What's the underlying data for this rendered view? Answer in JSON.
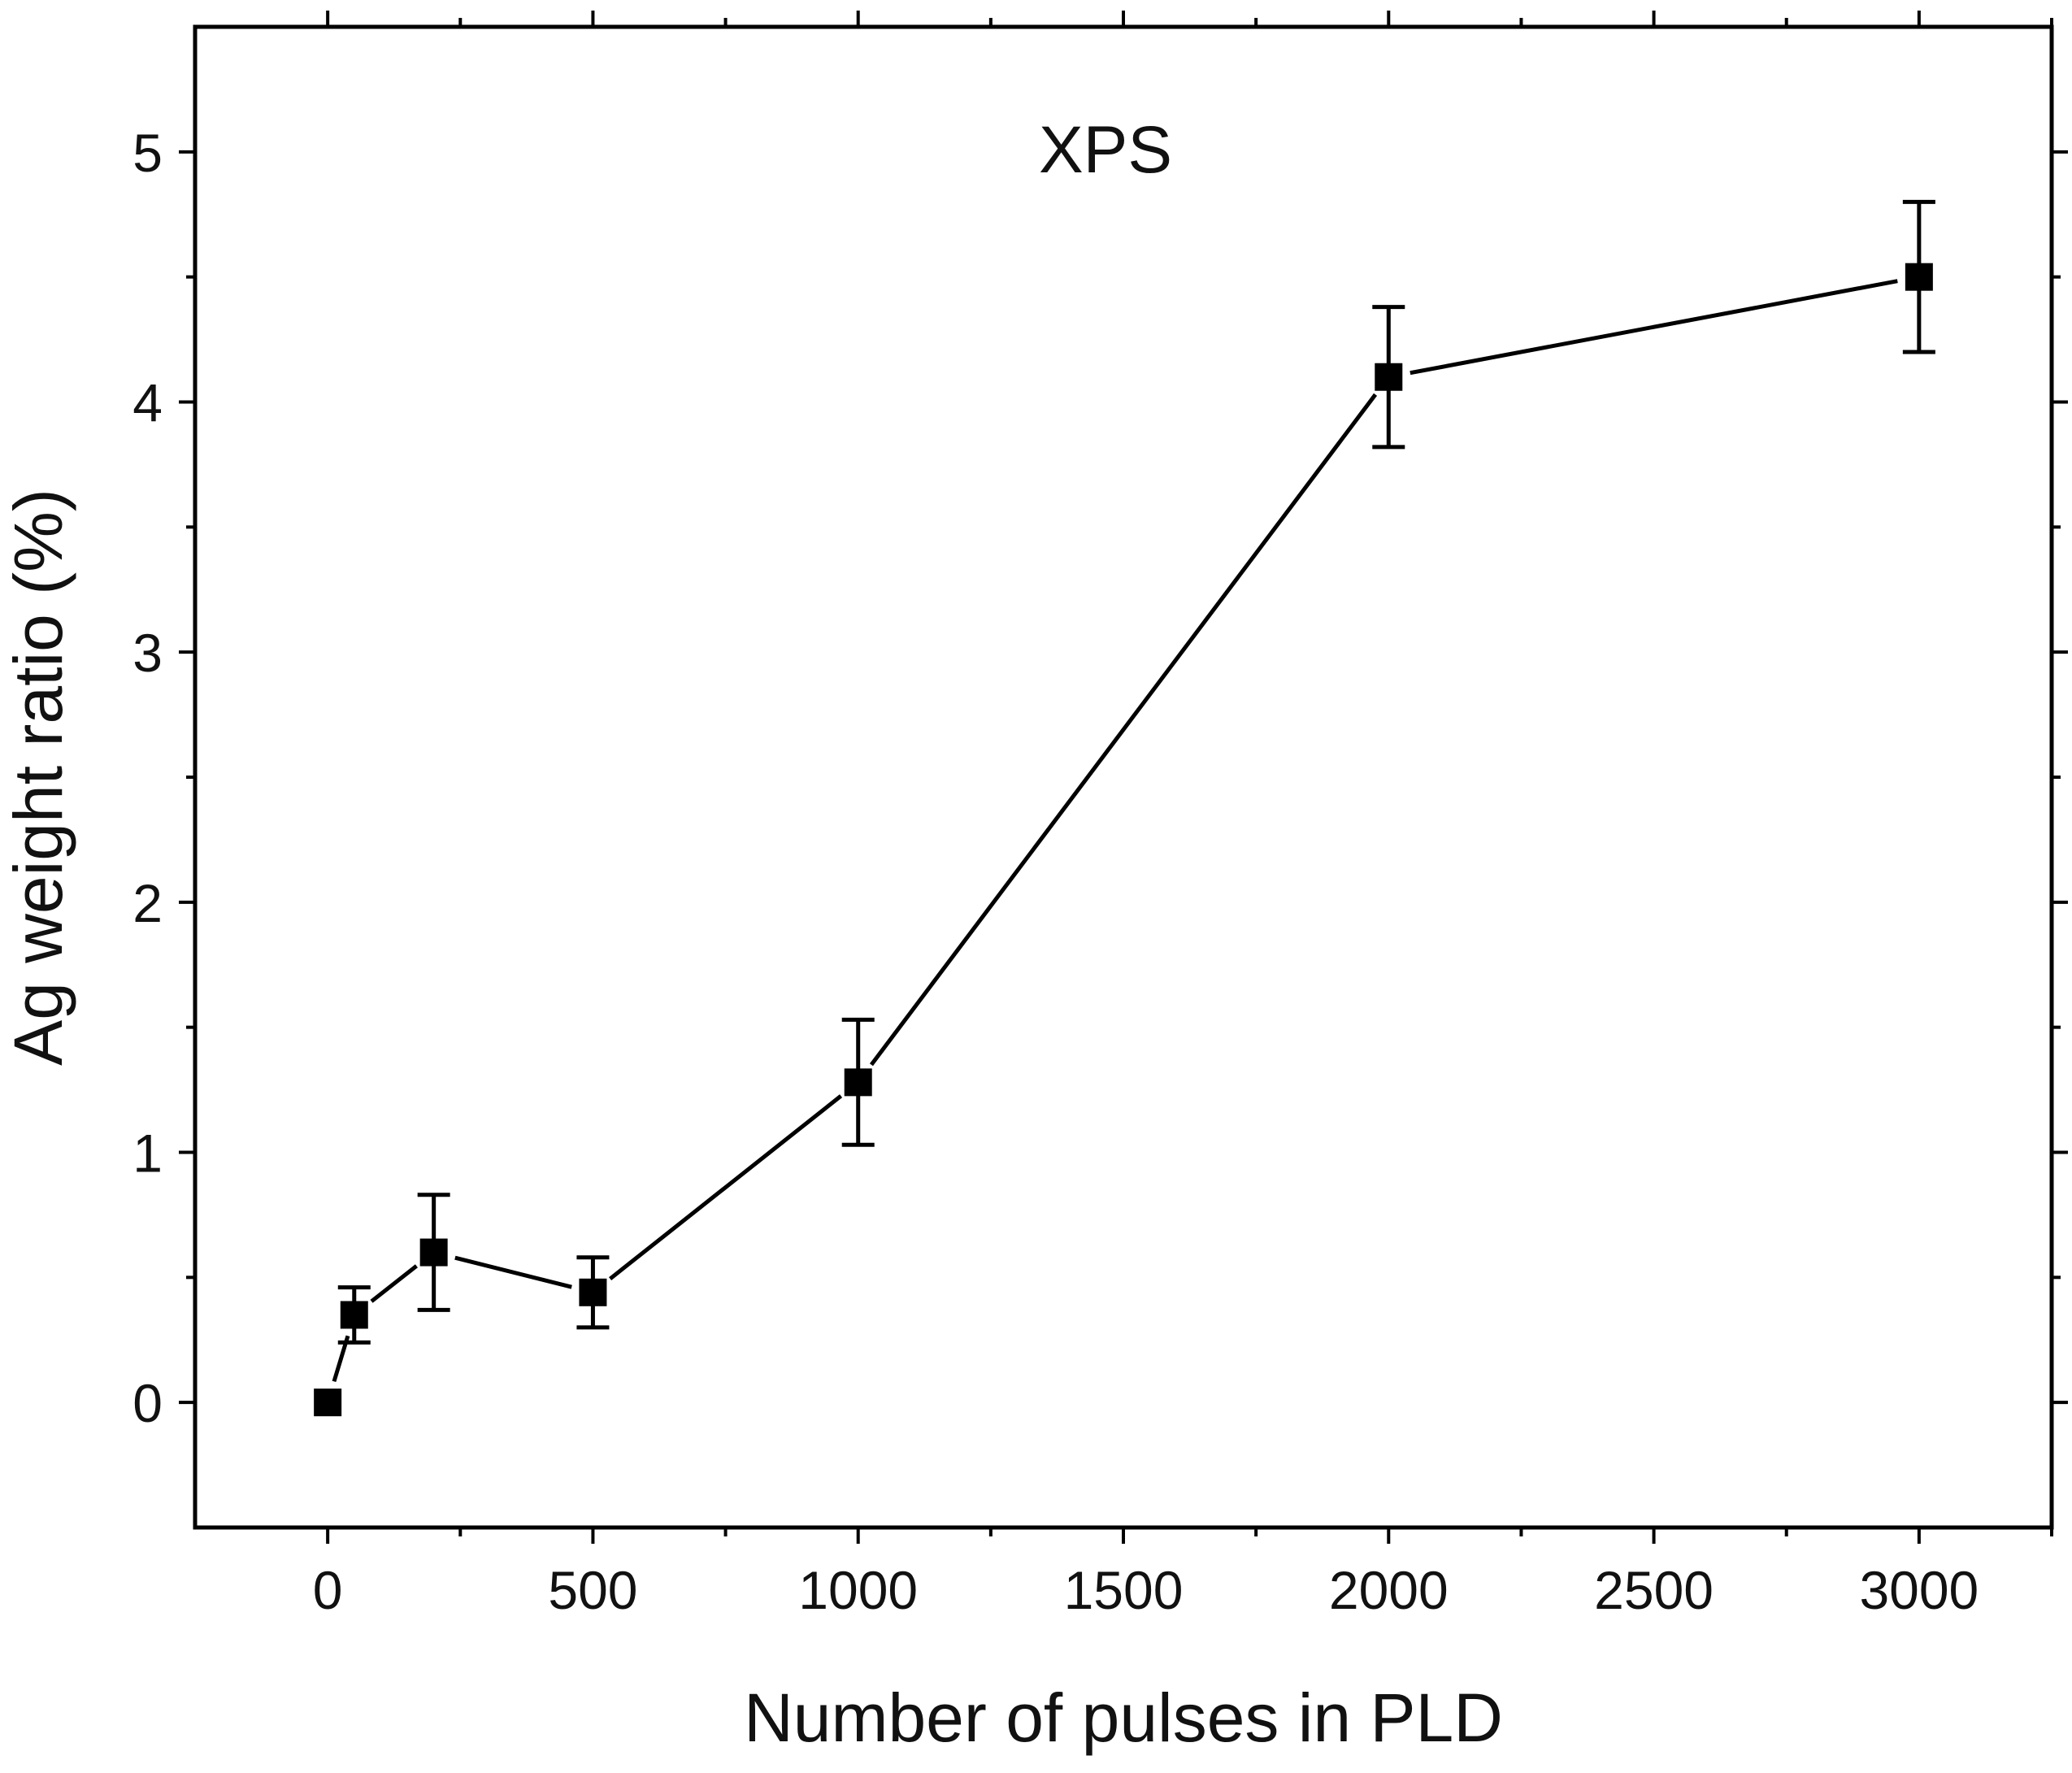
{
  "chart_data": {
    "type": "line",
    "title": "XPS",
    "xlabel": "Number of pulses in PLD",
    "ylabel": "Ag weight ratio (%)",
    "xlim": [
      -250,
      3250
    ],
    "ylim": [
      -0.5,
      5.5
    ],
    "xticks": [
      0,
      500,
      1000,
      1500,
      2000,
      2500,
      3000
    ],
    "xtick_labels": [
      "0",
      "500",
      "1000",
      "1500",
      "2000",
      "2500",
      "3000"
    ],
    "yticks": [
      0,
      1,
      2,
      3,
      4,
      5
    ],
    "ytick_labels": [
      "0",
      "1",
      "2",
      "3",
      "4",
      "5"
    ],
    "x_minor_step": 250,
    "y_minor_step": 0.5,
    "grid": false,
    "colors": {
      "line": "#000000",
      "marker": "#000000",
      "axis": "#000000"
    },
    "series": [
      {
        "name": "Ag weight ratio",
        "marker": "square",
        "points": [
          {
            "x": 0,
            "y": 0.0,
            "err": 0.0
          },
          {
            "x": 50,
            "y": 0.35,
            "err": 0.11
          },
          {
            "x": 200,
            "y": 0.6,
            "err": 0.23
          },
          {
            "x": 500,
            "y": 0.44,
            "err": 0.14
          },
          {
            "x": 1000,
            "y": 1.28,
            "err": 0.25
          },
          {
            "x": 2000,
            "y": 4.1,
            "err": 0.28
          },
          {
            "x": 3000,
            "y": 4.5,
            "err": 0.3
          }
        ]
      }
    ]
  }
}
